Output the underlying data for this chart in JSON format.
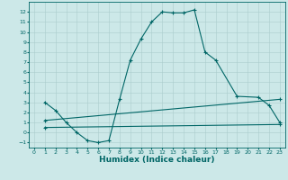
{
  "xlabel": "Humidex (Indice chaleur)",
  "bg_color": "#cce8e8",
  "line_color": "#006666",
  "grid_color": "#aacccc",
  "xlim": [
    -0.5,
    23.5
  ],
  "ylim": [
    -1.5,
    13.0
  ],
  "xticks": [
    0,
    1,
    2,
    3,
    4,
    5,
    6,
    7,
    8,
    9,
    10,
    11,
    12,
    13,
    14,
    15,
    16,
    17,
    18,
    19,
    20,
    21,
    22,
    23
  ],
  "yticks": [
    -1,
    0,
    1,
    2,
    3,
    4,
    5,
    6,
    7,
    8,
    9,
    10,
    11,
    12
  ],
  "curve1_x": [
    1,
    2,
    3,
    4,
    5,
    6,
    7,
    8,
    9,
    10,
    11,
    12,
    13,
    14,
    15,
    16,
    17,
    19,
    21,
    22,
    23
  ],
  "curve1_y": [
    3.0,
    2.2,
    1.0,
    0.0,
    -0.8,
    -1.0,
    -0.8,
    3.3,
    7.2,
    9.3,
    11.0,
    12.0,
    11.9,
    11.9,
    12.2,
    8.0,
    7.2,
    3.6,
    3.5,
    2.7,
    1.0
  ],
  "curve2_x": [
    1,
    23
  ],
  "curve2_y": [
    1.2,
    3.3
  ],
  "curve3_x": [
    1,
    23
  ],
  "curve3_y": [
    0.5,
    0.8
  ],
  "tick_fontsize": 4.5,
  "xlabel_fontsize": 6.5
}
